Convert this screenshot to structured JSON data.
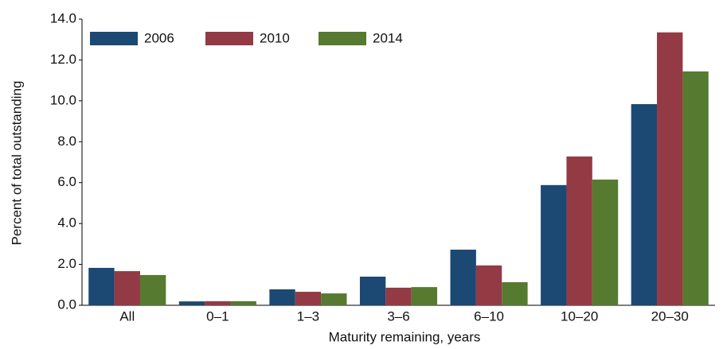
{
  "chart_data": {
    "type": "bar",
    "x_label": "Maturity remaining, years",
    "y_label": "Percent of total outstanding",
    "categories": [
      "All",
      "0–1",
      "1–3",
      "3–6",
      "6–10",
      "10–20",
      "20–30"
    ],
    "series": [
      {
        "name": "2006",
        "color": "#1c4874",
        "values": [
          1.83,
          0.19,
          0.78,
          1.4,
          2.72,
          5.88,
          9.84
        ]
      },
      {
        "name": "2010",
        "color": "#943a45",
        "values": [
          1.67,
          0.2,
          0.66,
          0.86,
          1.95,
          7.28,
          13.35
        ]
      },
      {
        "name": "2014",
        "color": "#567a2f",
        "values": [
          1.48,
          0.2,
          0.58,
          0.89,
          1.13,
          6.15,
          11.44
        ]
      }
    ],
    "ylim": [
      0,
      14
    ],
    "yticks": [
      {
        "value": 0,
        "label": "0.0"
      },
      {
        "value": 2,
        "label": "2.0"
      },
      {
        "value": 4,
        "label": "4.0"
      },
      {
        "value": 6,
        "label": "6.0"
      },
      {
        "value": 8,
        "label": "8.0"
      },
      {
        "value": 10,
        "label": "10.0"
      },
      {
        "value": 12,
        "label": "12.0"
      },
      {
        "value": 14,
        "label": "14.0"
      }
    ],
    "legend": "top-left",
    "grid": false
  }
}
